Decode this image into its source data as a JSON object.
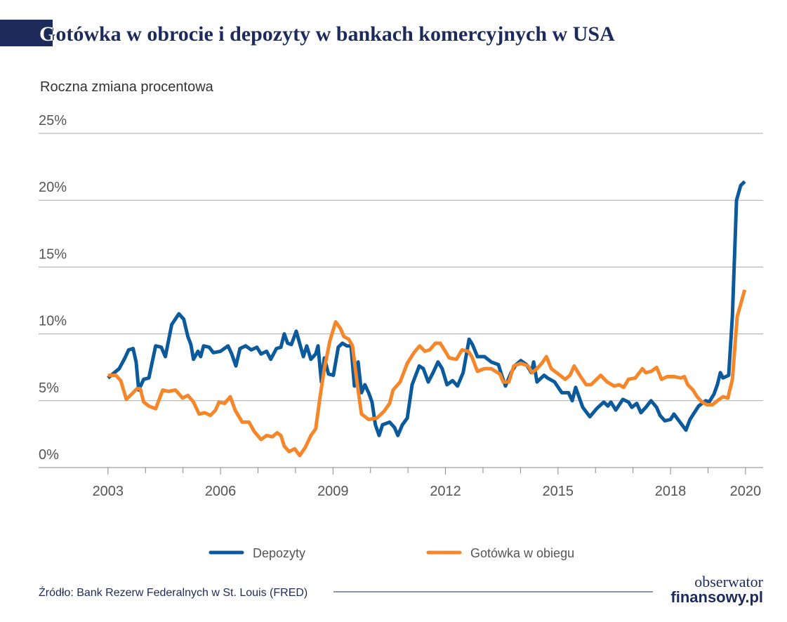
{
  "chart_data": {
    "type": "line",
    "title": "Gotówka w obrocie i depozyty w bankach komercyjnych w USA",
    "subtitle": "Roczna zmiana procentowa",
    "source": "Źródło: Bank Rezerw Federalnych w St. Louis (FRED)",
    "xlim": [
      2001.15,
      2020.47
    ],
    "xticks": [
      2003,
      2006,
      2009,
      2012,
      2015,
      2018,
      2020
    ],
    "xticks_minor": [
      2004,
      2005,
      2007,
      2008,
      2010,
      2011,
      2013,
      2014,
      2016,
      2017,
      2019
    ],
    "ylim": [
      0,
      25
    ],
    "yticks": [
      {
        "value": 0,
        "label": "0%"
      },
      {
        "value": 5,
        "label": "5%"
      },
      {
        "value": 10,
        "label": "10%"
      },
      {
        "value": 15,
        "label": "15%"
      },
      {
        "value": 20,
        "label": "20%"
      },
      {
        "value": 25,
        "label": "25%"
      }
    ],
    "grid": true,
    "series": [
      {
        "name": "Depozyty",
        "color": "#0b5a9c",
        "x": [
          2003.0,
          2003.3,
          2003.45,
          2003.55,
          2003.67,
          2003.75,
          2003.82,
          2003.95,
          2004.09,
          2004.27,
          2004.42,
          2004.53,
          2004.7,
          2004.89,
          2005.02,
          2005.13,
          2005.21,
          2005.28,
          2005.4,
          2005.47,
          2005.55,
          2005.7,
          2005.81,
          2006.0,
          2006.2,
          2006.3,
          2006.41,
          2006.52,
          2006.67,
          2006.82,
          2006.97,
          2007.08,
          2007.23,
          2007.34,
          2007.49,
          2007.61,
          2007.7,
          2007.79,
          2007.89,
          2008.02,
          2008.21,
          2008.3,
          2008.41,
          2008.54,
          2008.6,
          2008.69,
          2008.77,
          2008.88,
          2009.01,
          2009.14,
          2009.25,
          2009.37,
          2009.48,
          2009.57,
          2009.67,
          2009.76,
          2009.85,
          2009.95,
          2010.04,
          2010.13,
          2010.23,
          2010.32,
          2010.51,
          2010.64,
          2010.73,
          2010.85,
          2010.98,
          2011.11,
          2011.3,
          2011.41,
          2011.54,
          2011.67,
          2011.8,
          2011.91,
          2012.04,
          2012.19,
          2012.32,
          2012.47,
          2012.63,
          2012.72,
          2012.85,
          2013.04,
          2013.22,
          2013.41,
          2013.5,
          2013.6,
          2013.75,
          2013.88,
          2014.01,
          2014.16,
          2014.29,
          2014.35,
          2014.44,
          2014.63,
          2014.72,
          2014.91,
          2015.1,
          2015.28,
          2015.38,
          2015.47,
          2015.66,
          2015.85,
          2016.03,
          2016.22,
          2016.33,
          2016.41,
          2016.54,
          2016.73,
          2016.88,
          2016.97,
          2017.1,
          2017.21,
          2017.34,
          2017.48,
          2017.63,
          2017.72,
          2017.85,
          2018.0,
          2018.09,
          2018.28,
          2018.41,
          2018.52,
          2018.75,
          2018.94,
          2019.03,
          2019.16,
          2019.25,
          2019.33,
          2019.4,
          2019.55,
          2019.65,
          2019.76,
          2019.87,
          2019.98
        ],
        "values": [
          6.7,
          7.4,
          8.2,
          8.8,
          8.9,
          7.9,
          5.8,
          6.6,
          6.7,
          9.1,
          9.0,
          8.3,
          10.7,
          11.5,
          11.1,
          9.8,
          9.2,
          8.1,
          8.7,
          8.3,
          9.1,
          9.0,
          8.6,
          8.7,
          9.1,
          8.5,
          7.6,
          8.9,
          9.1,
          8.8,
          9.0,
          8.5,
          8.7,
          8.1,
          8.9,
          9.0,
          10.0,
          9.3,
          9.2,
          10.2,
          8.3,
          9.1,
          8.1,
          8.5,
          9.1,
          6.4,
          8.2,
          7.0,
          6.9,
          9.0,
          9.3,
          9.1,
          9.1,
          6.1,
          7.9,
          5.6,
          6.2,
          5.6,
          4.9,
          3.2,
          2.4,
          3.2,
          3.4,
          3.0,
          2.4,
          3.2,
          3.7,
          6.2,
          7.6,
          7.4,
          6.4,
          7.1,
          7.9,
          7.4,
          6.2,
          6.5,
          6.1,
          7.1,
          9.6,
          9.2,
          8.3,
          8.3,
          7.9,
          7.7,
          6.9,
          6.1,
          7.1,
          7.7,
          8.0,
          7.7,
          7.1,
          7.9,
          6.4,
          6.9,
          6.7,
          6.4,
          5.6,
          5.6,
          5.0,
          6.0,
          4.5,
          3.8,
          4.4,
          4.9,
          4.6,
          4.9,
          4.3,
          5.1,
          4.9,
          4.5,
          4.8,
          4.1,
          4.5,
          5.0,
          4.5,
          3.9,
          3.5,
          3.6,
          4.0,
          3.3,
          2.8,
          3.6,
          4.6,
          5.0,
          4.9,
          5.5,
          6.2,
          7.1,
          6.7,
          6.9,
          11.3,
          20.0,
          21.1,
          21.4
        ]
      },
      {
        "name": "Gotówka w obiegu",
        "color": "#f5872a",
        "x": [
          2003.0,
          2003.21,
          2003.34,
          2003.49,
          2003.67,
          2003.77,
          2003.86,
          2003.95,
          2004.09,
          2004.27,
          2004.46,
          2004.61,
          2004.8,
          2004.99,
          2005.13,
          2005.28,
          2005.43,
          2005.58,
          2005.73,
          2005.87,
          2005.96,
          2006.11,
          2006.26,
          2006.39,
          2006.58,
          2006.76,
          2006.9,
          2007.08,
          2007.23,
          2007.38,
          2007.51,
          2007.61,
          2007.7,
          2007.83,
          2007.98,
          2008.11,
          2008.26,
          2008.41,
          2008.54,
          2008.64,
          2008.77,
          2008.92,
          2009.07,
          2009.2,
          2009.29,
          2009.42,
          2009.52,
          2009.63,
          2009.76,
          2009.95,
          2010.17,
          2010.36,
          2010.51,
          2010.6,
          2010.79,
          2010.98,
          2011.16,
          2011.31,
          2011.45,
          2011.58,
          2011.73,
          2011.86,
          2011.97,
          2012.1,
          2012.29,
          2012.44,
          2012.61,
          2012.7,
          2012.85,
          2013.04,
          2013.22,
          2013.45,
          2013.54,
          2013.69,
          2013.82,
          2014.01,
          2014.2,
          2014.31,
          2014.44,
          2014.57,
          2014.69,
          2014.82,
          2015.01,
          2015.19,
          2015.32,
          2015.43,
          2015.58,
          2015.75,
          2015.88,
          2016.03,
          2016.14,
          2016.31,
          2016.5,
          2016.63,
          2016.75,
          2016.88,
          2017.06,
          2017.25,
          2017.34,
          2017.49,
          2017.63,
          2017.76,
          2017.91,
          2018.09,
          2018.28,
          2018.37,
          2018.46,
          2018.6,
          2018.71,
          2018.84,
          2018.97,
          2019.12,
          2019.25,
          2019.4,
          2019.53,
          2019.65,
          2019.78,
          2019.89,
          2019.98
        ],
        "values": [
          6.9,
          6.9,
          6.5,
          5.1,
          5.6,
          5.9,
          5.9,
          4.9,
          4.6,
          4.4,
          5.8,
          5.7,
          5.8,
          5.2,
          5.4,
          4.9,
          4.0,
          4.1,
          3.9,
          4.3,
          4.9,
          4.8,
          5.3,
          4.3,
          3.4,
          3.4,
          2.7,
          2.1,
          2.4,
          2.3,
          2.6,
          2.4,
          1.6,
          1.2,
          1.4,
          0.9,
          1.5,
          2.4,
          2.9,
          5.0,
          7.4,
          9.5,
          10.9,
          10.4,
          9.8,
          9.6,
          9.1,
          6.6,
          4.0,
          3.6,
          3.7,
          4.2,
          4.8,
          5.8,
          6.4,
          7.8,
          8.6,
          9.1,
          8.7,
          8.8,
          9.3,
          9.3,
          8.8,
          8.2,
          8.1,
          8.8,
          8.7,
          8.3,
          7.2,
          7.4,
          7.4,
          7.0,
          6.4,
          6.4,
          7.6,
          7.8,
          7.6,
          7.1,
          7.4,
          7.8,
          8.3,
          7.4,
          7.0,
          6.6,
          6.9,
          7.6,
          6.9,
          6.2,
          6.2,
          6.6,
          6.9,
          6.4,
          6.1,
          6.2,
          6.0,
          6.6,
          6.7,
          7.4,
          7.1,
          7.2,
          7.5,
          6.6,
          6.8,
          6.8,
          6.7,
          6.8,
          6.2,
          5.8,
          5.3,
          4.9,
          4.7,
          4.7,
          5.0,
          5.3,
          5.2,
          6.6,
          11.3,
          12.4,
          13.3
        ]
      }
    ]
  },
  "logo": {
    "line1": "obserwator",
    "line2": "finansowy.pl"
  }
}
